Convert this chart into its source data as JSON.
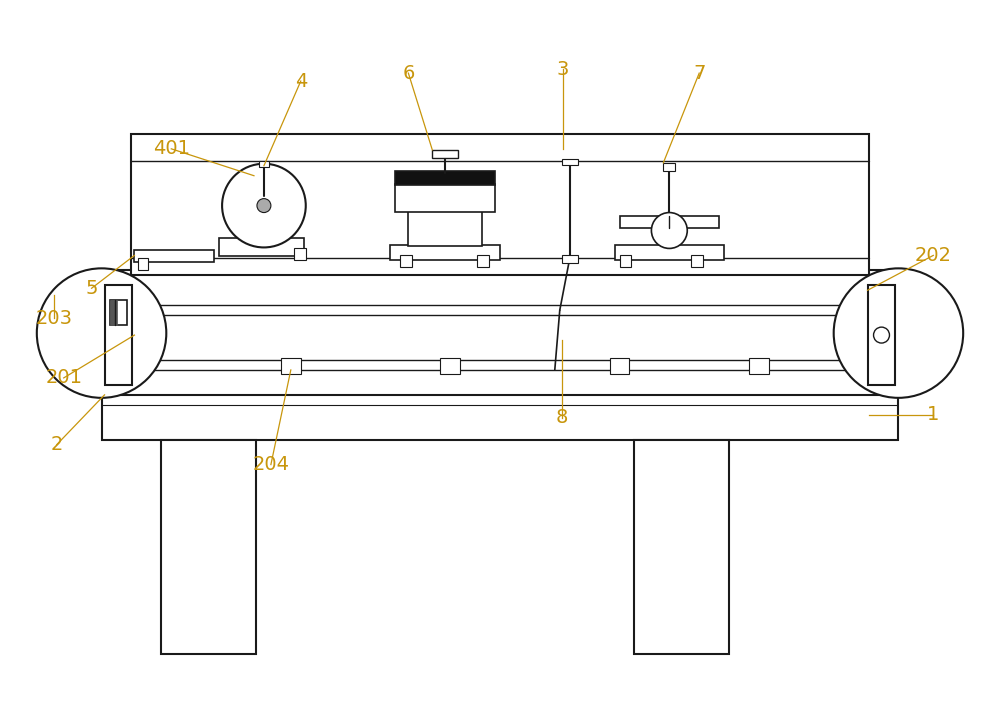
{
  "bg_color": "#ffffff",
  "line_color": "#1a1a1a",
  "label_color": "#c8960c",
  "fig_width": 10.0,
  "fig_height": 7.13,
  "dpi": 100
}
